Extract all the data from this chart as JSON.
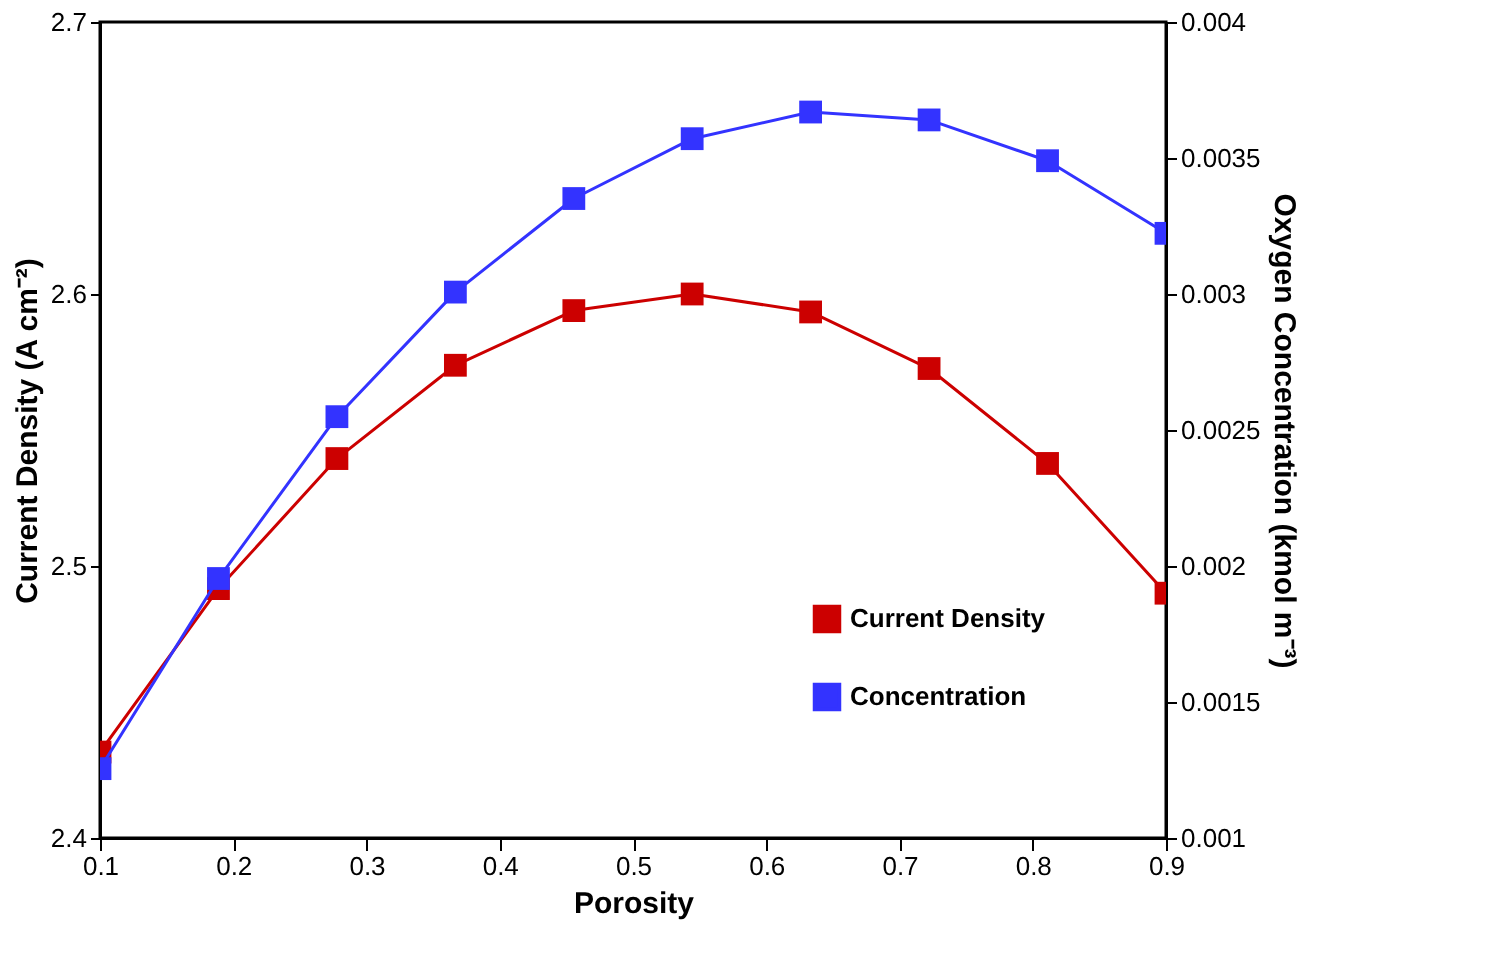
{
  "chart_data": {
    "type": "line",
    "xlabel": "Porosity",
    "ylabel": "Current Density (A cm⁻²)",
    "y2label": "Oxygen Concentration (kmol m⁻³)",
    "x": [
      0.1,
      0.1889,
      0.2778,
      0.3667,
      0.4556,
      0.5444,
      0.6333,
      0.7222,
      0.8111,
      0.9
    ],
    "series": [
      {
        "name": "Current Density",
        "color": "#cc0000",
        "axis": "y",
        "values": [
          2.4316,
          2.4917,
          2.5395,
          2.5738,
          2.5939,
          2.6,
          2.5934,
          2.5726,
          2.5377,
          2.49
        ]
      },
      {
        "name": "Concentration",
        "color": "#3333ff",
        "axis": "y2",
        "values": [
          0.001255,
          0.001954,
          0.002549,
          0.003007,
          0.003351,
          0.003571,
          0.003669,
          0.00364,
          0.00349,
          0.003223
        ]
      }
    ],
    "xlim": [
      0.1,
      0.9
    ],
    "xticks": [
      0.1,
      0.2,
      0.3,
      0.4,
      0.5,
      0.6,
      0.7,
      0.8,
      0.9
    ],
    "ylim": [
      2.4,
      2.7
    ],
    "yticks": [
      2.4,
      2.5,
      2.6,
      2.7
    ],
    "y2lim": [
      0.001,
      0.004
    ],
    "y2ticks": [
      0.001,
      0.0015,
      0.002,
      0.0025,
      0.003,
      0.0035,
      0.004
    ],
    "grid": false,
    "legend": "bottom right",
    "marker": "square",
    "line_style": "solid"
  }
}
